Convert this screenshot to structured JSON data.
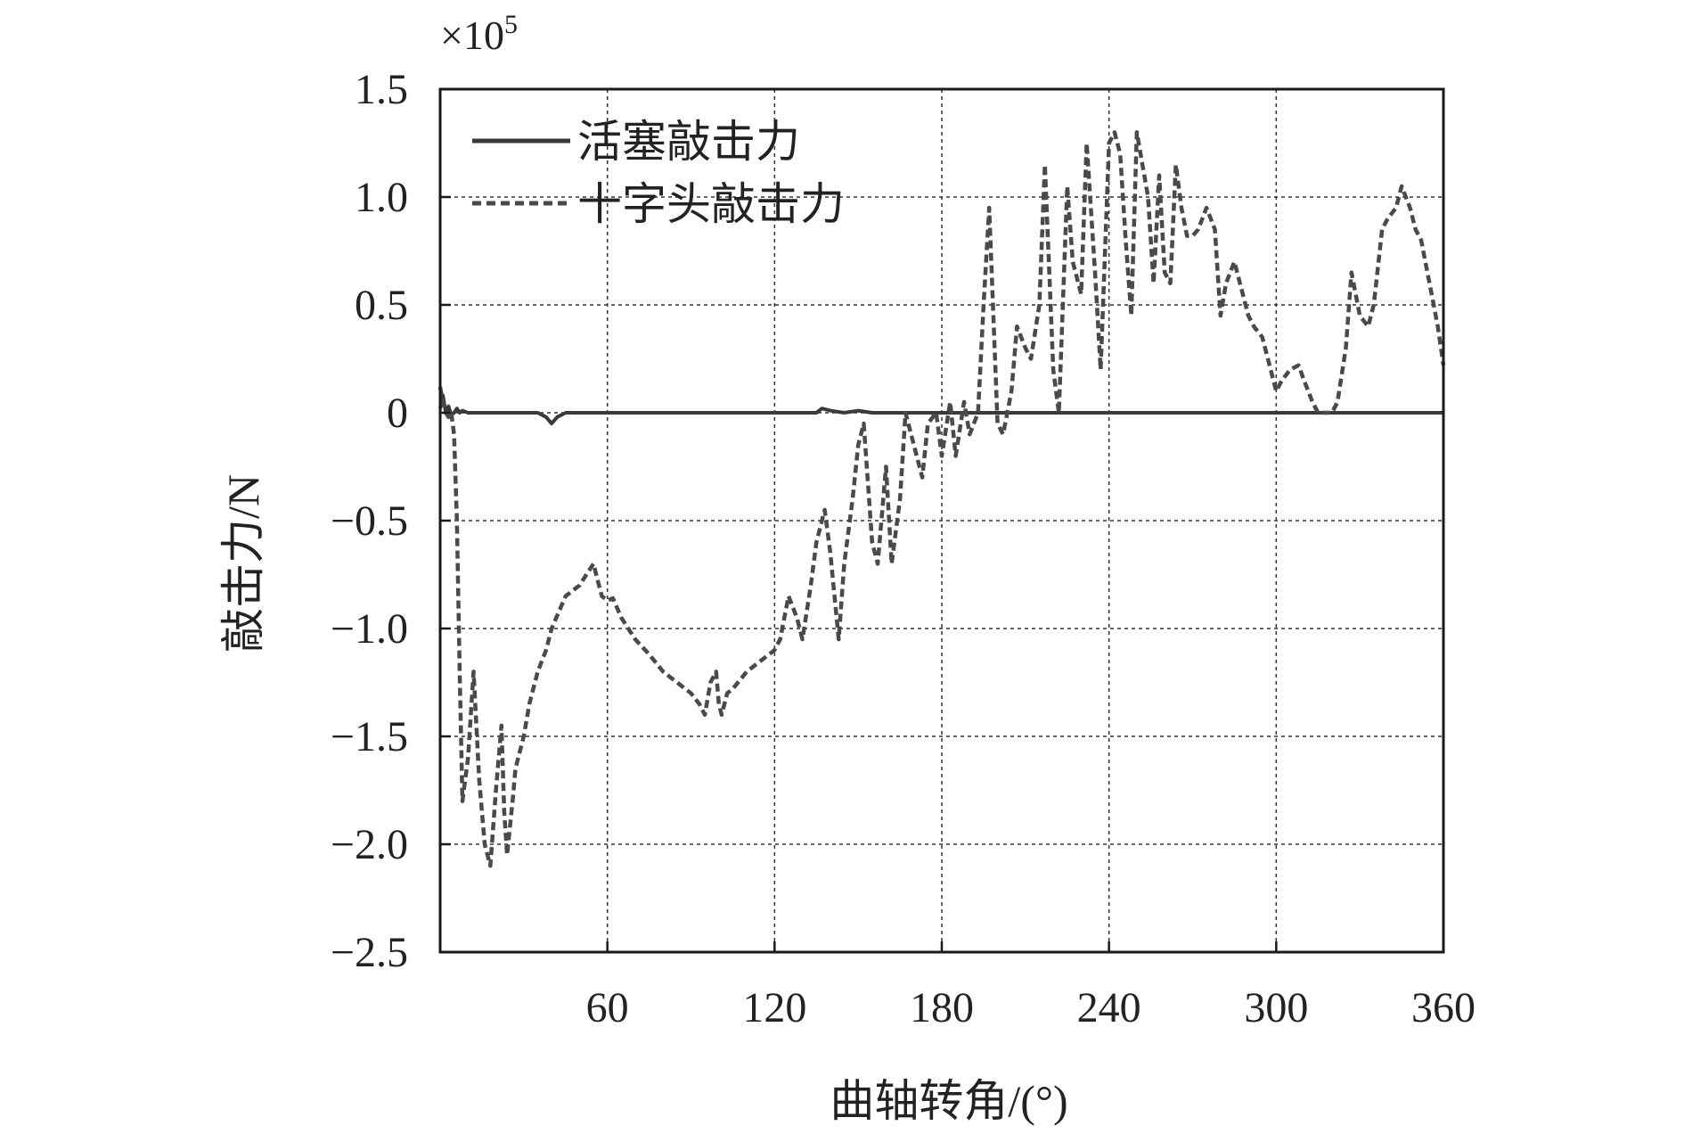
{
  "chart_data": {
    "type": "line",
    "xlabel": "曲轴转角/(°)",
    "ylabel": "敲击力/N",
    "y_multiplier": {
      "base": "×10",
      "exponent": "5"
    },
    "xlim": [
      0,
      360
    ],
    "ylim": [
      -2.5,
      1.5
    ],
    "x_ticks": [
      60,
      120,
      180,
      240,
      300,
      360
    ],
    "x_tick_labels": [
      "60",
      "120",
      "180",
      "240",
      "300",
      "360"
    ],
    "y_ticks": [
      1.5,
      1.0,
      0.5,
      0,
      -0.5,
      -1.0,
      -1.5,
      -2.0,
      -2.5
    ],
    "y_tick_labels": [
      "1.5",
      "1.0",
      "0.5",
      "0",
      "−0.5",
      "−1.0",
      "−1.5",
      "−2.0",
      "−2.5"
    ],
    "grid": true,
    "legend_position": "top-left",
    "colors": {
      "axis": "#1a1a1a",
      "grid": "#333333",
      "piston": "#3a3a3a",
      "crosshead": "#4a4a4a"
    },
    "series": [
      {
        "name": "活塞敲击力",
        "style": "solid",
        "x": [
          0,
          1,
          2,
          3,
          4,
          5,
          6,
          7,
          8,
          10,
          20,
          35,
          38,
          40,
          42,
          45,
          60,
          80,
          100,
          120,
          130,
          135,
          137,
          140,
          145,
          150,
          155,
          160,
          170,
          200,
          250,
          300,
          360
        ],
        "y": [
          0.02,
          0.08,
          0.0,
          0.03,
          -0.01,
          0.0,
          0.02,
          0.0,
          0.01,
          0.0,
          0.0,
          0.0,
          -0.02,
          -0.05,
          -0.02,
          0.0,
          0.0,
          0.0,
          0.0,
          0.0,
          0.0,
          0.0,
          0.02,
          0.01,
          0.0,
          0.01,
          0.0,
          0.0,
          0.0,
          0.0,
          0.0,
          0.0,
          0.0
        ]
      },
      {
        "name": "十字头敲击力",
        "style": "dashed",
        "x": [
          0,
          1,
          2,
          3,
          4,
          5,
          6,
          7,
          8,
          10,
          12,
          14,
          15,
          16,
          18,
          20,
          22,
          23,
          24,
          26,
          27,
          28,
          30,
          32,
          35,
          38,
          40,
          45,
          50,
          55,
          58,
          60,
          62,
          65,
          70,
          75,
          80,
          85,
          90,
          93,
          95,
          97,
          99,
          100,
          101,
          103,
          105,
          110,
          115,
          120,
          122,
          125,
          128,
          130,
          133,
          135,
          138,
          140,
          143,
          145,
          148,
          150,
          152,
          155,
          157,
          160,
          162,
          165,
          167,
          170,
          173,
          175,
          178,
          180,
          183,
          185,
          188,
          190,
          193,
          195,
          197,
          200,
          202,
          205,
          207,
          210,
          212,
          215,
          217,
          220,
          222,
          225,
          227,
          230,
          232,
          235,
          237,
          240,
          242,
          244,
          246,
          248,
          250,
          252,
          254,
          256,
          258,
          260,
          262,
          264,
          266,
          268,
          270,
          272,
          275,
          278,
          280,
          282,
          285,
          288,
          290,
          292,
          295,
          298,
          300,
          302,
          305,
          308,
          310,
          313,
          315,
          318,
          320,
          322,
          325,
          327,
          330,
          333,
          335,
          338,
          340,
          343,
          345,
          348,
          350,
          352,
          355,
          358,
          360
        ],
        "y": [
          0.12,
          0.05,
          0.0,
          -0.02,
          0.0,
          -0.1,
          -0.5,
          -1.2,
          -1.8,
          -1.6,
          -1.2,
          -1.7,
          -1.85,
          -2.0,
          -2.1,
          -1.75,
          -1.45,
          -1.85,
          -2.05,
          -1.8,
          -1.65,
          -1.6,
          -1.5,
          -1.35,
          -1.2,
          -1.1,
          -1.0,
          -0.85,
          -0.8,
          -0.7,
          -0.85,
          -0.87,
          -0.86,
          -0.95,
          -1.05,
          -1.12,
          -1.2,
          -1.25,
          -1.3,
          -1.35,
          -1.4,
          -1.25,
          -1.2,
          -1.35,
          -1.4,
          -1.3,
          -1.28,
          -1.2,
          -1.15,
          -1.1,
          -1.05,
          -0.85,
          -0.95,
          -1.05,
          -0.8,
          -0.6,
          -0.45,
          -0.65,
          -1.05,
          -0.7,
          -0.4,
          -0.15,
          -0.05,
          -0.6,
          -0.7,
          -0.25,
          -0.7,
          -0.4,
          0.0,
          -0.15,
          -0.3,
          -0.05,
          0.0,
          -0.2,
          0.05,
          -0.2,
          0.05,
          -0.1,
          0.0,
          0.5,
          0.95,
          -0.05,
          -0.1,
          0.1,
          0.4,
          0.3,
          0.25,
          0.5,
          1.15,
          0.2,
          0.0,
          1.05,
          0.7,
          0.55,
          1.25,
          0.65,
          0.2,
          1.25,
          1.3,
          1.2,
          0.8,
          0.45,
          1.3,
          1.15,
          1.0,
          0.6,
          1.1,
          0.65,
          0.6,
          1.15,
          0.95,
          0.82,
          0.82,
          0.85,
          0.95,
          0.85,
          0.45,
          0.6,
          0.7,
          0.55,
          0.45,
          0.4,
          0.35,
          0.2,
          0.1,
          0.15,
          0.2,
          0.22,
          0.15,
          0.05,
          0.0,
          0.0,
          0.0,
          0.05,
          0.3,
          0.65,
          0.45,
          0.4,
          0.5,
          0.85,
          0.9,
          0.95,
          1.05,
          0.95,
          0.85,
          0.8,
          0.6,
          0.4,
          0.22
        ]
      }
    ]
  }
}
